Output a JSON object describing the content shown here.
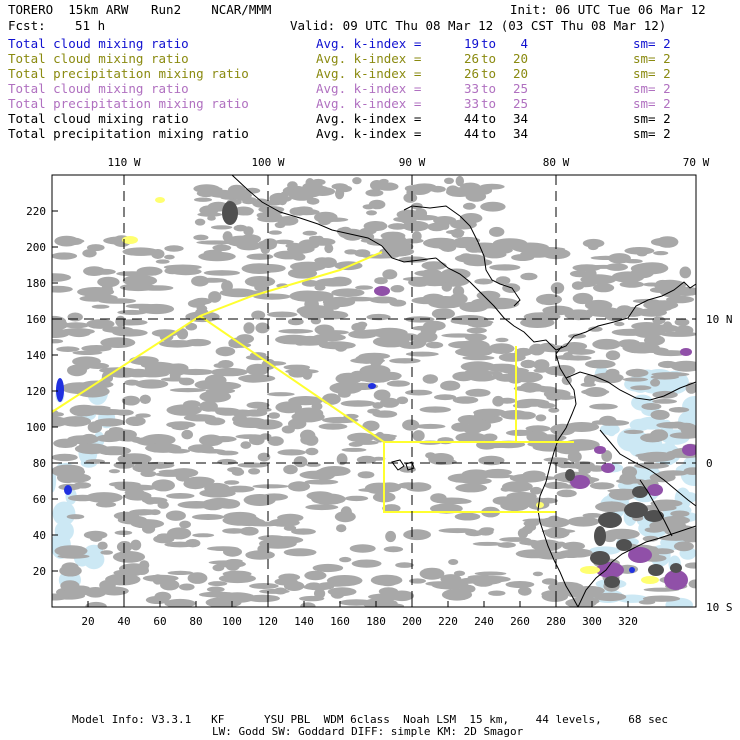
{
  "header": {
    "model": "TORERO  15km ARW   Run2    NCAR/MMM",
    "init": "Init: 06 UTC Tue 06 Mar 12",
    "fcst_label": "Fcst:",
    "fcst_value": "51 h",
    "valid": "Valid: 09 UTC Thu 08 Mar 12 (03 CST Thu 08 Mar 12)"
  },
  "legend": [
    {
      "name": "Total cloud mixing ratio",
      "avg": "Avg. k-index =",
      "k1": "19",
      "to": "to",
      "k2": "4",
      "sm": "sm= 2",
      "color": "#1010d0"
    },
    {
      "name": "Total cloud mixing ratio",
      "avg": "Avg. k-index =",
      "k1": "26",
      "to": "to",
      "k2": "20",
      "sm": "sm= 2",
      "color": "#8a8a10"
    },
    {
      "name": "Total precipitation mixing ratio",
      "avg": "Avg. k-index =",
      "k1": "26",
      "to": "to",
      "k2": "20",
      "sm": "sm= 2",
      "color": "#8a8a10"
    },
    {
      "name": "Total cloud mixing ratio",
      "avg": "Avg. k-index =",
      "k1": "33",
      "to": "to",
      "k2": "25",
      "sm": "sm= 2",
      "color": "#b070c0"
    },
    {
      "name": "Total precipitation mixing ratio",
      "avg": "Avg. k-index =",
      "k1": "33",
      "to": "to",
      "k2": "25",
      "sm": "sm= 2",
      "color": "#b070c0"
    },
    {
      "name": "Total cloud mixing ratio",
      "avg": "Avg. k-index =",
      "k1": "44",
      "to": "to",
      "k2": "34",
      "sm": "sm= 2",
      "color": "#000000"
    },
    {
      "name": "Total precipitation mixing ratio",
      "avg": "Avg. k-index =",
      "k1": "44",
      "to": "to",
      "k2": "34",
      "sm": "sm= 2",
      "color": "#000000"
    }
  ],
  "map": {
    "lon_labels": [
      "110 W",
      "100 W",
      "90 W",
      "80 W",
      "70 W"
    ],
    "lat_labels": [
      "10 N",
      "0",
      "10 S"
    ],
    "x_ticks": [
      "20",
      "40",
      "60",
      "80",
      "100",
      "120",
      "140",
      "160",
      "180",
      "200",
      "220",
      "240",
      "260",
      "280",
      "300",
      "320"
    ],
    "y_ticks": [
      "20",
      "40",
      "60",
      "80",
      "100",
      "120",
      "140",
      "160",
      "180",
      "200",
      "220"
    ],
    "colors": {
      "cloud_gray": "#a8a8a8",
      "dark_gray": "#505050",
      "boundary": "#ffff30",
      "light_blue": "#cce8f4",
      "blue": "#2030e0",
      "purple": "#9050a8",
      "yellow_fill": "#ffff70"
    }
  },
  "footer": {
    "line1": "Model Info: V3.3.1   KF      YSU PBL  WDM 6class  Noah LSM  15 km,    44 levels,    68 sec",
    "line2": "LW: Godd SW: Goddard DIFF: simple KM: 2D Smagor"
  }
}
